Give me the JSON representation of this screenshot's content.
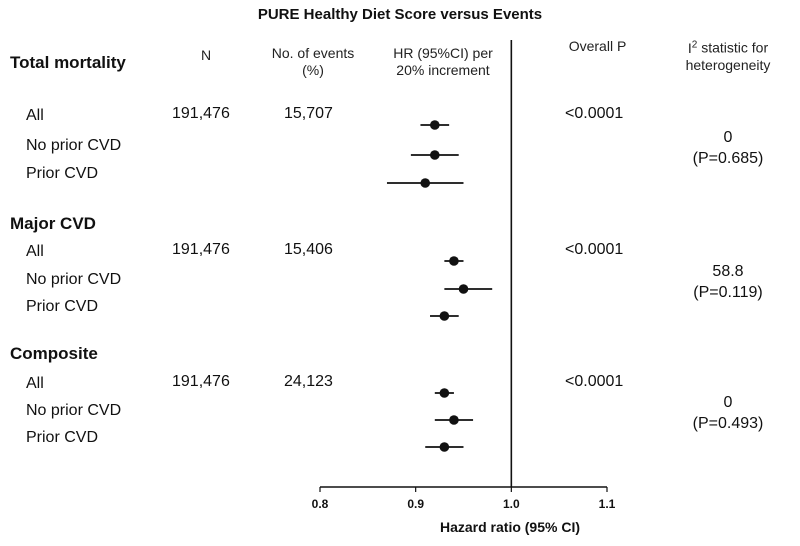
{
  "chart_data": {
    "type": "forest",
    "title": "PURE Healthy Diet Score versus Events",
    "xlabel": "Hazard ratio (95% CI)",
    "xlim": [
      0.8,
      1.1
    ],
    "xticks": [
      "0.8",
      "0.9",
      "1.0",
      "1.1"
    ],
    "reference_line": 1.0,
    "columns": {
      "n": "N",
      "events": "No. of events (%)",
      "hr": "HR (95%CI) per 20% increment",
      "p": "Overall P",
      "i2": "statistic for heterogeneity"
    },
    "groups": [
      {
        "title": "Total mortality",
        "n": "191,476",
        "events": "15,707",
        "p": "<0.0001",
        "i2_value": "0",
        "i2_p": "(P=0.685)",
        "rows": [
          {
            "label": "All",
            "hr": 0.92,
            "lo": 0.905,
            "hi": 0.935
          },
          {
            "label": "No prior CVD",
            "hr": 0.92,
            "lo": 0.895,
            "hi": 0.945
          },
          {
            "label": "Prior CVD",
            "hr": 0.91,
            "lo": 0.87,
            "hi": 0.95
          }
        ]
      },
      {
        "title": "Major CVD",
        "n": "191,476",
        "events": "15,406",
        "p": "<0.0001",
        "i2_value": "58.8",
        "i2_p": "(P=0.119)",
        "rows": [
          {
            "label": "All",
            "hr": 0.94,
            "lo": 0.93,
            "hi": 0.95
          },
          {
            "label": "No prior CVD",
            "hr": 0.95,
            "lo": 0.93,
            "hi": 0.98
          },
          {
            "label": "Prior CVD",
            "hr": 0.93,
            "lo": 0.915,
            "hi": 0.945
          }
        ]
      },
      {
        "title": "Composite",
        "n": "191,476",
        "events": "24,123",
        "p": "<0.0001",
        "i2_value": "0",
        "i2_p": "(P=0.493)",
        "rows": [
          {
            "label": "All",
            "hr": 0.93,
            "lo": 0.92,
            "hi": 0.94
          },
          {
            "label": "No prior CVD",
            "hr": 0.94,
            "lo": 0.92,
            "hi": 0.96
          },
          {
            "label": "Prior CVD",
            "hr": 0.93,
            "lo": 0.91,
            "hi": 0.95
          }
        ]
      }
    ]
  }
}
